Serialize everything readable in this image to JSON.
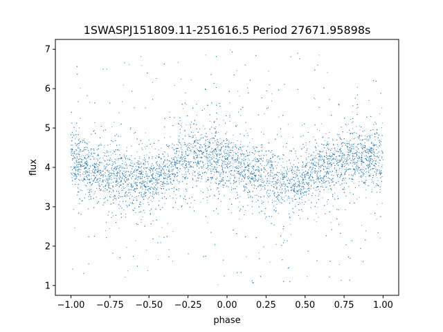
{
  "chart_data": {
    "type": "scatter",
    "title": "1SWASPJ151809.11-251616.5 Period 27671.95898s",
    "xlabel": "phase",
    "ylabel": "flux",
    "xlim": [
      -1.1,
      1.1
    ],
    "ylim": [
      0.75,
      7.25
    ],
    "xticks": [
      -1.0,
      -0.75,
      -0.5,
      -0.25,
      0.0,
      0.25,
      0.5,
      0.75,
      1.0
    ],
    "xtick_labels": [
      "−1.00",
      "−0.75",
      "−0.50",
      "−0.25",
      "0.00",
      "0.25",
      "0.50",
      "0.75",
      "1.00"
    ],
    "yticks": [
      1,
      2,
      3,
      4,
      5,
      6,
      7
    ],
    "ytick_labels": [
      "1",
      "2",
      "3",
      "4",
      "5",
      "6",
      "7"
    ],
    "grid": false,
    "legend": "none",
    "marker_color": "#1f77b4",
    "series": [
      {
        "phase_range": [
          -1.0,
          1.0
        ],
        "trend": {
          "phase": [
            -1.0,
            -0.85,
            -0.75,
            -0.6,
            -0.5,
            -0.4,
            -0.3,
            -0.2,
            -0.1,
            0.0,
            0.1,
            0.25,
            0.35,
            0.45,
            0.55,
            0.65,
            0.8,
            0.9,
            1.0
          ],
          "flux": [
            4.15,
            3.95,
            3.8,
            3.65,
            3.62,
            3.8,
            4.1,
            4.3,
            4.28,
            4.15,
            3.95,
            3.8,
            3.65,
            3.62,
            3.8,
            4.05,
            4.25,
            4.22,
            4.15
          ]
        },
        "core_scatter": 0.35,
        "outlier_flux_range": [
          1.0,
          7.0
        ]
      }
    ]
  }
}
